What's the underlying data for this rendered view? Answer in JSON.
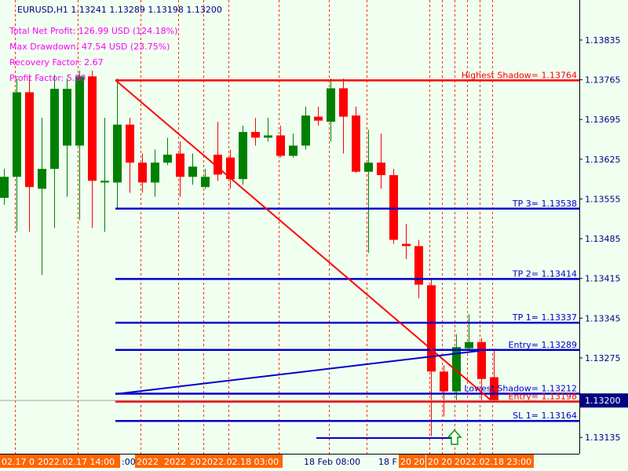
{
  "chart_data": {
    "type": "candlestick",
    "header": "EURUSD,H1  1.13241 1.13289 1.13198 1.13200",
    "stats": [
      "Total Net Profit: 126.99 USD (124.18%)",
      "Max Drawdown: 47.54 USD (23.75%)",
      "Recovery Factor: 2.67",
      "Profit Factor: 5.80"
    ],
    "up_color": "#008000",
    "down_color": "#ff0000",
    "open": [
      1.13557,
      1.13594,
      1.13743,
      1.13573,
      1.13608,
      1.13649,
      1.13649,
      1.13771,
      1.13584,
      1.13584,
      1.13686,
      1.13619,
      1.13584,
      1.13619,
      1.13635,
      1.13594,
      1.13576,
      1.13633,
      1.13628,
      1.1359,
      1.13673,
      1.13663,
      1.13667,
      1.13631,
      1.13649,
      1.137,
      1.13691,
      1.1375,
      1.13702,
      1.13603,
      1.13619,
      1.13597,
      1.13476,
      1.13472,
      1.13403,
      1.13251,
      1.13216,
      1.13292,
      1.13303,
      1.13241
    ],
    "high": [
      1.13608,
      1.13767,
      1.13774,
      1.13698,
      1.13774,
      1.13767,
      1.13781,
      1.13781,
      1.13698,
      1.13767,
      1.13698,
      1.13635,
      1.13642,
      1.13663,
      1.13656,
      1.13635,
      1.13608,
      1.13691,
      1.13642,
      1.13684,
      1.13698,
      1.13698,
      1.13684,
      1.1367,
      1.13718,
      1.13718,
      1.13767,
      1.13767,
      1.13718,
      1.13677,
      1.1367,
      1.13608,
      1.13511,
      1.13483,
      1.13414,
      1.13262,
      1.13317,
      1.13352,
      1.1331,
      1.13289
    ],
    "low": [
      1.13545,
      1.13497,
      1.13497,
      1.13421,
      1.13504,
      1.13559,
      1.13518,
      1.13504,
      1.13497,
      1.13539,
      1.13566,
      1.13566,
      1.13559,
      1.13615,
      1.13559,
      1.1358,
      1.13573,
      1.13587,
      1.13573,
      1.1358,
      1.13649,
      1.13656,
      1.13628,
      1.13628,
      1.13642,
      1.13684,
      1.13656,
      1.13635,
      1.13601,
      1.1346,
      1.13573,
      1.13476,
      1.13449,
      1.1338,
      1.13137,
      1.13172,
      1.132,
      1.1329,
      1.132,
      1.13198
    ],
    "close": [
      1.13594,
      1.13743,
      1.13576,
      1.13608,
      1.13749,
      1.13749,
      1.13771,
      1.13587,
      1.13587,
      1.13686,
      1.13619,
      1.13584,
      1.13619,
      1.13633,
      1.13594,
      1.13612,
      1.13594,
      1.13598,
      1.1359,
      1.13673,
      1.13663,
      1.13667,
      1.13631,
      1.13649,
      1.13702,
      1.13693,
      1.1375,
      1.137,
      1.13603,
      1.13619,
      1.13597,
      1.13483,
      1.13472,
      1.13404,
      1.13251,
      1.13216,
      1.13294,
      1.13303,
      1.13238,
      1.132
    ],
    "levels": [
      {
        "name": "Highest Shadow=",
        "value": 1.13764,
        "color": "#ff0000"
      },
      {
        "name": "TP 3=",
        "value": 1.13538,
        "color": "#0000cc"
      },
      {
        "name": "TP 2=",
        "value": 1.13414,
        "color": "#0000cc"
      },
      {
        "name": "TP 1=",
        "value": 1.13337,
        "color": "#0000cc"
      },
      {
        "name": "Entry=",
        "value": 1.13289,
        "color": "#0000cc"
      },
      {
        "name": "Lowest Shadow=",
        "value": 1.13212,
        "color": "#0000cc"
      },
      {
        "name": "Entry=",
        "value": 1.13198,
        "color": "#ff0000"
      },
      {
        "name": "SL 1=",
        "value": 1.13164,
        "color": "#0000cc"
      }
    ],
    "bid": {
      "value": 1.132,
      "label": "1.13200"
    },
    "ylim": [
      1.131062,
      1.139055
    ],
    "yticks": [
      1.13835,
      1.13765,
      1.13695,
      1.13625,
      1.13555,
      1.13485,
      1.13415,
      1.13345,
      1.13275,
      1.13135
    ],
    "xlabels": [
      "02.17 0",
      "2022.02.17 14:00",
      ":00",
      "2022",
      "2022",
      "20",
      "2022.02.18 03:00",
      "18 Feb 08:00",
      "18 F",
      "20",
      "20",
      "20",
      "20",
      "2022.02.18 23:00"
    ]
  }
}
